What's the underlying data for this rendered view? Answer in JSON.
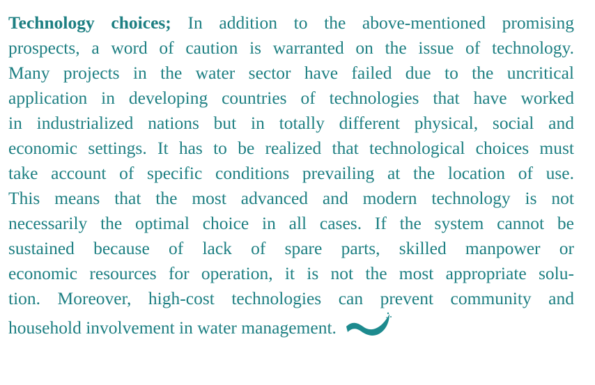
{
  "paragraph": {
    "lead": "Technology choices;",
    "lines": [
      "In addition to the above-mentioned promising",
      "prospects, a word of caution is warranted on the issue of technology.",
      "Many projects in the water sector have failed due to the uncritical",
      "application in developing countries of technologies that have worked",
      "in industrialized nations but in totally different physical, social and",
      "economic settings. It has to be realized that technological choices must",
      "take account of specific conditions prevailing at the location of use.",
      "This means that the most advanced and modern technology is not",
      "necessarily the optimal choice in all cases. If the system cannot be",
      "sustained because of lack of spare parts, skilled manpower or",
      "economic resources for operation, it is not the most appropriate solu-",
      "tion. Moreover, high-cost technologies can prevent community and",
      "household involvement in water management."
    ]
  }
}
